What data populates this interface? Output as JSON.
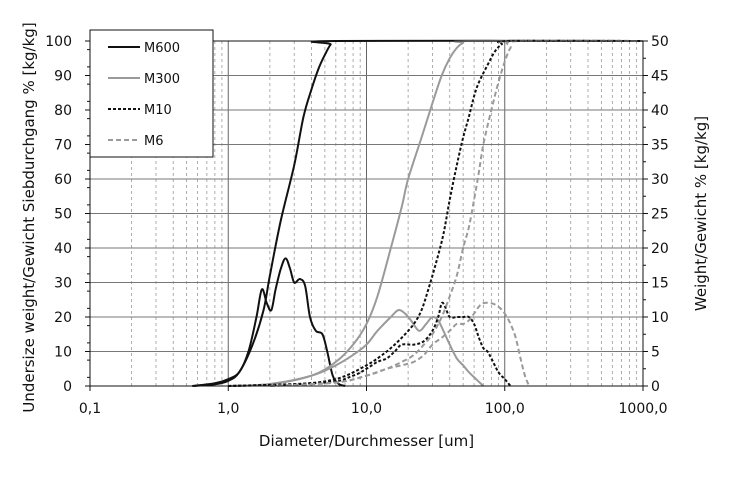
{
  "chart_data": {
    "type": "line",
    "title": "",
    "xlabel": "Diameter/Durchmesser [um]",
    "ylabel": "Undersize weight/Gewicht Siebdurchgang % [kg/kg]",
    "y2label": "Weight/Gewicht % [kg/kg]",
    "x_scale": "log",
    "xlim": [
      0.1,
      1000
    ],
    "ylim": [
      0,
      100
    ],
    "y2lim": [
      0,
      50
    ],
    "x_tick_values": [
      0.1,
      1,
      10,
      100,
      1000
    ],
    "x_tick_labels": [
      "0,1",
      "1,0",
      "10,0",
      "100,0",
      "1000,0"
    ],
    "y_ticks": [
      "0",
      "10",
      "20",
      "30",
      "40",
      "50",
      "60",
      "70",
      "80",
      "90",
      "100"
    ],
    "y2_ticks": [
      "0",
      "5",
      "10",
      "15",
      "20",
      "25",
      "30",
      "35",
      "40",
      "45",
      "50"
    ],
    "grid": "log-minor-vertical-dashed, major-horizontal",
    "legend_position": "top-left",
    "colors": {
      "M600": "#111111",
      "M300": "#9a9a9a",
      "M10": "#111111",
      "M6": "#9a9a9a"
    },
    "series": [
      {
        "name": "M600",
        "kind": "cumulative",
        "axis": "left",
        "style": "solid",
        "points": [
          [
            0.55,
            0
          ],
          [
            0.8,
            0.5
          ],
          [
            1.0,
            1.5
          ],
          [
            1.2,
            4
          ],
          [
            1.5,
            12
          ],
          [
            1.8,
            22
          ],
          [
            2.0,
            32
          ],
          [
            2.4,
            48
          ],
          [
            3.0,
            64
          ],
          [
            3.5,
            78
          ],
          [
            4.0,
            86
          ],
          [
            4.5,
            92
          ],
          [
            5.0,
            96
          ],
          [
            5.5,
            99
          ],
          [
            6.0,
            100
          ],
          [
            1000,
            100
          ]
        ]
      },
      {
        "name": "M600",
        "kind": "distribution",
        "axis": "right",
        "style": "solid",
        "points": [
          [
            0.55,
            0
          ],
          [
            0.8,
            0.4
          ],
          [
            1.0,
            1
          ],
          [
            1.2,
            2
          ],
          [
            1.4,
            5
          ],
          [
            1.6,
            10
          ],
          [
            1.75,
            14
          ],
          [
            1.9,
            12
          ],
          [
            2.05,
            11
          ],
          [
            2.2,
            14
          ],
          [
            2.4,
            17
          ],
          [
            2.6,
            18.5
          ],
          [
            2.8,
            17
          ],
          [
            3.0,
            15
          ],
          [
            3.3,
            15.5
          ],
          [
            3.6,
            14.5
          ],
          [
            3.9,
            10
          ],
          [
            4.3,
            8
          ],
          [
            4.8,
            7.5
          ],
          [
            5.2,
            5
          ],
          [
            5.7,
            1.5
          ],
          [
            6.3,
            0.3
          ],
          [
            7.0,
            0
          ]
        ]
      },
      {
        "name": "M300",
        "kind": "cumulative",
        "axis": "left",
        "style": "solid",
        "points": [
          [
            1.0,
            0
          ],
          [
            2.0,
            0.5
          ],
          [
            4.0,
            3
          ],
          [
            6.0,
            7
          ],
          [
            8.0,
            12
          ],
          [
            10.0,
            18
          ],
          [
            12.0,
            26
          ],
          [
            15.0,
            40
          ],
          [
            18.0,
            52
          ],
          [
            20.0,
            60
          ],
          [
            25.0,
            72
          ],
          [
            30.0,
            82
          ],
          [
            35.0,
            90
          ],
          [
            40.0,
            95
          ],
          [
            45.0,
            98
          ],
          [
            50.0,
            99.5
          ],
          [
            55.0,
            100
          ],
          [
            1000,
            100
          ]
        ]
      },
      {
        "name": "M300",
        "kind": "distribution",
        "axis": "right",
        "style": "solid",
        "points": [
          [
            1.0,
            0
          ],
          [
            2.0,
            0.3
          ],
          [
            4.0,
            1.5
          ],
          [
            6.0,
            3
          ],
          [
            8.0,
            4.5
          ],
          [
            10.0,
            6
          ],
          [
            12.0,
            8
          ],
          [
            15.0,
            10
          ],
          [
            17.0,
            11
          ],
          [
            19.0,
            10.5
          ],
          [
            21.0,
            9.5
          ],
          [
            24.0,
            8
          ],
          [
            27.0,
            9
          ],
          [
            30.0,
            10
          ],
          [
            33.0,
            9.5
          ],
          [
            36.0,
            8
          ],
          [
            40.0,
            6
          ],
          [
            45.0,
            4
          ],
          [
            50.0,
            3
          ],
          [
            55.0,
            2
          ],
          [
            62.0,
            1
          ],
          [
            70.0,
            0
          ]
        ]
      },
      {
        "name": "M10",
        "kind": "cumulative",
        "axis": "left",
        "style": "dotted",
        "points": [
          [
            1.0,
            0
          ],
          [
            3.0,
            0.5
          ],
          [
            6.0,
            2
          ],
          [
            10.0,
            6
          ],
          [
            14.0,
            10
          ],
          [
            18.0,
            14
          ],
          [
            22.0,
            18
          ],
          [
            25.0,
            22
          ],
          [
            28.0,
            28
          ],
          [
            32.0,
            36
          ],
          [
            36.0,
            44
          ],
          [
            40.0,
            54
          ],
          [
            45.0,
            64
          ],
          [
            50.0,
            72
          ],
          [
            55.0,
            78
          ],
          [
            60.0,
            84
          ],
          [
            65.0,
            88
          ],
          [
            75.0,
            93
          ],
          [
            85.0,
            97
          ],
          [
            95.0,
            99
          ],
          [
            110.0,
            100
          ],
          [
            1000,
            100
          ]
        ]
      },
      {
        "name": "M10",
        "kind": "distribution",
        "axis": "right",
        "style": "dotted",
        "points": [
          [
            1.0,
            0
          ],
          [
            5.0,
            0.5
          ],
          [
            8.0,
            1.5
          ],
          [
            10.0,
            2.5
          ],
          [
            12.0,
            3.5
          ],
          [
            14.0,
            4
          ],
          [
            16.0,
            5
          ],
          [
            18.0,
            6
          ],
          [
            22.0,
            6
          ],
          [
            26.0,
            6.5
          ],
          [
            30.0,
            8
          ],
          [
            33.0,
            10
          ],
          [
            35.0,
            12
          ],
          [
            37.0,
            11.5
          ],
          [
            40.0,
            10
          ],
          [
            45.0,
            10
          ],
          [
            50.0,
            10
          ],
          [
            55.0,
            10
          ],
          [
            60.0,
            9
          ],
          [
            65.0,
            7
          ],
          [
            70.0,
            5.5
          ],
          [
            75.0,
            5
          ],
          [
            80.0,
            4
          ],
          [
            90.0,
            2
          ],
          [
            100.0,
            1
          ],
          [
            110.0,
            0
          ]
        ]
      },
      {
        "name": "M6",
        "kind": "cumulative",
        "axis": "left",
        "style": "dashed",
        "points": [
          [
            2.0,
            0
          ],
          [
            6.0,
            1
          ],
          [
            10.0,
            3
          ],
          [
            14.0,
            5
          ],
          [
            18.0,
            7
          ],
          [
            22.0,
            9
          ],
          [
            26.0,
            12
          ],
          [
            30.0,
            15
          ],
          [
            35.0,
            20
          ],
          [
            40.0,
            26
          ],
          [
            45.0,
            32
          ],
          [
            50.0,
            40
          ],
          [
            55.0,
            46
          ],
          [
            60.0,
            54
          ],
          [
            65.0,
            62
          ],
          [
            70.0,
            70
          ],
          [
            80.0,
            80
          ],
          [
            90.0,
            88
          ],
          [
            100.0,
            94
          ],
          [
            110.0,
            98
          ],
          [
            125.0,
            100
          ],
          [
            1000,
            100
          ]
        ]
      },
      {
        "name": "M6",
        "kind": "distribution",
        "axis": "right",
        "style": "dashed",
        "points": [
          [
            2.0,
            0
          ],
          [
            6.0,
            0.5
          ],
          [
            10.0,
            1.5
          ],
          [
            14.0,
            2.5
          ],
          [
            18.0,
            3
          ],
          [
            22.0,
            3.5
          ],
          [
            26.0,
            4.5
          ],
          [
            30.0,
            6
          ],
          [
            35.0,
            7
          ],
          [
            40.0,
            8
          ],
          [
            45.0,
            9
          ],
          [
            50.0,
            9
          ],
          [
            55.0,
            9.5
          ],
          [
            60.0,
            10.5
          ],
          [
            65.0,
            11.5
          ],
          [
            70.0,
            12
          ],
          [
            80.0,
            12
          ],
          [
            90.0,
            11.5
          ],
          [
            100.0,
            10.5
          ],
          [
            110.0,
            9
          ],
          [
            120.0,
            7
          ],
          [
            130.0,
            4
          ],
          [
            140.0,
            1.5
          ],
          [
            150.0,
            0
          ]
        ]
      }
    ]
  }
}
